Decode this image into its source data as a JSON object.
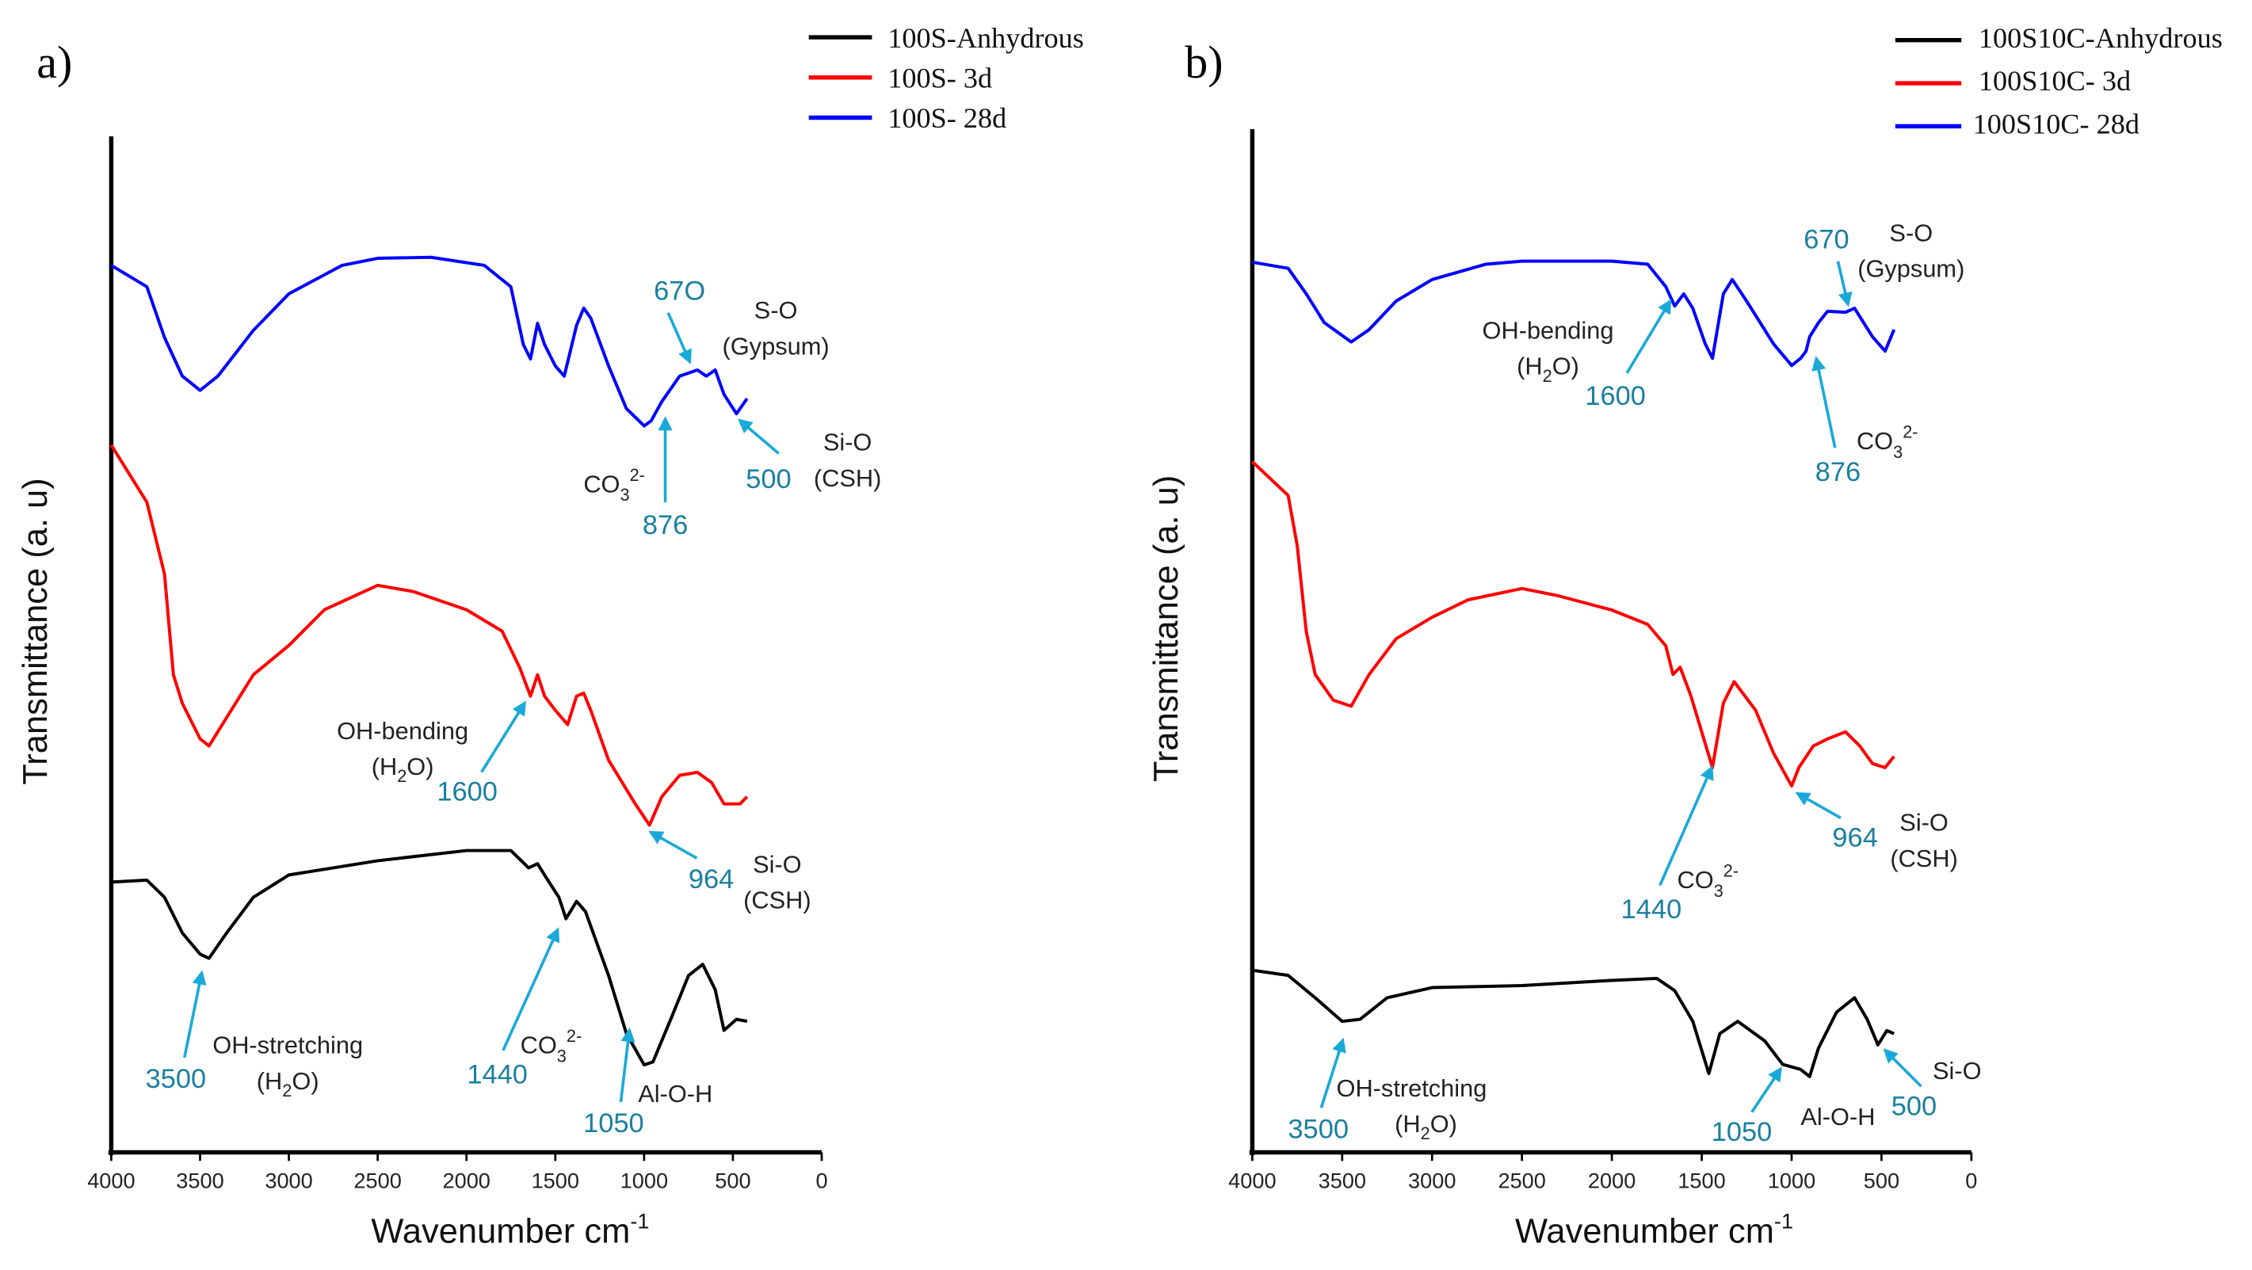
{
  "chart_data": [
    {
      "type": "line",
      "panel_label": "a)",
      "xlabel": "Wavenumber cm",
      "xlabel_sup": "-1",
      "ylabel": "Transmittance (a. u)",
      "xlim": [
        4000,
        0
      ],
      "xticks": [
        4000,
        3500,
        3000,
        2500,
        2000,
        1500,
        1000,
        500,
        0
      ],
      "ylim": [
        0,
        100
      ],
      "grid": false,
      "legend_position": "top-right",
      "series": [
        {
          "name": "100S-Anhydrous",
          "color": "#000000",
          "x": [
            4000,
            3800,
            3700,
            3600,
            3500,
            3450,
            3350,
            3200,
            3000,
            2500,
            2000,
            1750,
            1650,
            1600,
            1550,
            1480,
            1440,
            1380,
            1330,
            1200,
            1100,
            1000,
            950,
            850,
            750,
            670,
            600,
            550,
            480,
            420
          ],
          "y": [
            26.6,
            26.8,
            25.1,
            21.6,
            19.5,
            19.1,
            21.6,
            25.1,
            27.3,
            28.7,
            29.7,
            29.7,
            28.0,
            28.4,
            27.0,
            25.1,
            23.0,
            24.7,
            23.7,
            17.4,
            11.7,
            8.6,
            8.9,
            13.1,
            17.4,
            18.5,
            16.0,
            12.0,
            13.1,
            12.9
          ]
        },
        {
          "name": "100S- 3d",
          "color": "#ff0000",
          "x": [
            4000,
            3800,
            3700,
            3650,
            3600,
            3500,
            3450,
            3350,
            3200,
            3000,
            2800,
            2500,
            2300,
            2000,
            1800,
            1700,
            1640,
            1600,
            1560,
            1500,
            1430,
            1380,
            1340,
            1300,
            1200,
            1050,
            970,
            900,
            800,
            700,
            620,
            550,
            460,
            420
          ],
          "y": [
            69.6,
            64.0,
            56.9,
            47.0,
            44.2,
            40.7,
            40.0,
            42.8,
            47.0,
            49.9,
            53.4,
            55.8,
            55.2,
            53.4,
            51.3,
            47.7,
            44.9,
            47.0,
            44.9,
            43.5,
            42.1,
            44.9,
            45.2,
            43.5,
            38.6,
            34.3,
            32.2,
            35.0,
            37.1,
            37.4,
            36.4,
            34.3,
            34.3,
            35.0
          ]
        },
        {
          "name": "100S- 28d",
          "color": "#0000ff",
          "x": [
            4000,
            3800,
            3700,
            3600,
            3500,
            3400,
            3200,
            3000,
            2700,
            2500,
            2200,
            1900,
            1750,
            1680,
            1640,
            1600,
            1560,
            1500,
            1450,
            1380,
            1340,
            1300,
            1200,
            1100,
            1000,
            960,
            900,
            800,
            700,
            650,
            600,
            550,
            480,
            420
          ],
          "y": [
            87.3,
            85.2,
            80.2,
            76.4,
            75.0,
            76.4,
            80.9,
            84.5,
            87.3,
            88.0,
            88.1,
            87.3,
            85.2,
            79.5,
            78.1,
            81.6,
            79.5,
            77.4,
            76.4,
            81.4,
            83.1,
            82.1,
            77.4,
            73.2,
            71.5,
            72.0,
            73.9,
            76.4,
            77.0,
            76.4,
            77.0,
            74.6,
            72.7,
            74.2
          ]
        }
      ],
      "annotations": {
        "s_o_num": "67O",
        "s_o": "S-O",
        "gypsum": "(Gypsum)",
        "co3_876_num": "876",
        "co3": {
          "base": "CO",
          "sub": "3",
          "sup": "2-"
        },
        "si_o_500_num": "500",
        "si_o_top": "Si-O",
        "csh_top": "(CSH)",
        "oh_bend": "OH-bending",
        "h2o_bend": {
          "base": "(H",
          "sub": "2",
          "tail": "O)"
        },
        "oh_bend_num": "1600",
        "si_o_964_num": "964",
        "si_o_mid": "Si-O",
        "csh_mid": "(CSH)",
        "oh_stretch": "OH-stretching",
        "h2o_stretch": {
          "base": "(H",
          "sub": "2",
          "tail": "O)"
        },
        "oh_stretch_num": "3500",
        "co3_1440_num": "1440",
        "al_num": "1050",
        "al_o_h": "Al-O-H"
      }
    },
    {
      "type": "line",
      "panel_label": "b)",
      "xlabel": "Wavenumber cm",
      "xlabel_sup": "-1",
      "ylabel": "Transmittance (a. u)",
      "xlim": [
        4000,
        0
      ],
      "xticks": [
        4000,
        3500,
        3000,
        2500,
        2000,
        1500,
        1000,
        500,
        0
      ],
      "ylim": [
        0,
        100
      ],
      "grid": false,
      "legend_position": "top-right",
      "series": [
        {
          "name": "100S10C-Anhydrous",
          "color": "#000000",
          "x": [
            4000,
            3800,
            3650,
            3500,
            3400,
            3250,
            3000,
            2500,
            2000,
            1750,
            1650,
            1550,
            1460,
            1400,
            1300,
            1150,
            1050,
            950,
            900,
            850,
            750,
            650,
            580,
            520,
            470,
            430
          ],
          "y": [
            17.8,
            17.3,
            15.1,
            12.8,
            13.0,
            15.1,
            16.1,
            16.3,
            16.8,
            17.0,
            15.8,
            12.8,
            7.7,
            11.6,
            12.8,
            10.9,
            8.6,
            8.1,
            7.4,
            10.2,
            13.7,
            15.1,
            13.0,
            10.5,
            11.9,
            11.6
          ]
        },
        {
          "name": "100S10C- 3d",
          "color": "#ff0000",
          "x": [
            4000,
            3800,
            3750,
            3700,
            3650,
            3550,
            3450,
            3350,
            3200,
            3000,
            2800,
            2500,
            2300,
            2000,
            1800,
            1700,
            1660,
            1620,
            1560,
            1440,
            1380,
            1320,
            1200,
            1100,
            1000,
            960,
            880,
            800,
            700,
            620,
            550,
            480,
            430
          ],
          "y": [
            67.5,
            64.2,
            59.3,
            50.9,
            46.7,
            44.2,
            43.6,
            46.7,
            50.2,
            52.3,
            54.0,
            55.1,
            54.4,
            53.0,
            51.6,
            49.5,
            46.7,
            47.4,
            44.6,
            37.6,
            43.9,
            46.0,
            43.2,
            39.0,
            35.8,
            37.6,
            39.7,
            40.4,
            41.1,
            39.7,
            38.0,
            37.6,
            38.7
          ]
        },
        {
          "name": "100S10C- 28d",
          "color": "#0000ff",
          "x": [
            4000,
            3800,
            3700,
            3600,
            3450,
            3350,
            3200,
            3000,
            2700,
            2500,
            2000,
            1800,
            1700,
            1650,
            1600,
            1550,
            1480,
            1440,
            1380,
            1330,
            1250,
            1100,
            1000,
            950,
            920,
            900,
            850,
            800,
            700,
            650,
            550,
            480,
            430
          ],
          "y": [
            87.0,
            86.4,
            83.9,
            81.1,
            79.2,
            80.4,
            83.2,
            85.3,
            86.8,
            87.1,
            87.1,
            86.8,
            84.6,
            82.7,
            83.9,
            82.5,
            79.0,
            77.6,
            83.9,
            85.3,
            83.2,
            79.0,
            76.9,
            77.6,
            78.3,
            79.7,
            81.1,
            82.2,
            82.1,
            82.5,
            79.7,
            78.3,
            80.4
          ]
        }
      ],
      "annotations": {
        "s_o_num": "670",
        "s_o": "S-O",
        "gypsum": "(Gypsum)",
        "oh_bend": "OH-bending",
        "h2o_bend": {
          "base": "(H",
          "sub": "2",
          "tail": "O)"
        },
        "oh_bend_num": "1600",
        "co3": {
          "base": "CO",
          "sub": "3",
          "sup": "2-"
        },
        "co3_876_num": "876",
        "co3_1440_num": "1440",
        "si_o_964_num": "964",
        "si_o_mid": "Si-O",
        "csh_mid": "(CSH)",
        "oh_stretch": "OH-stretching",
        "h2o_stretch": {
          "base": "(H",
          "sub": "2",
          "tail": "O)"
        },
        "oh_stretch_num": "3500",
        "al_num": "1050",
        "al_o_h": "Al-O-H",
        "si_o_500_num": "500",
        "si_o_bot": "Si-O"
      }
    }
  ]
}
